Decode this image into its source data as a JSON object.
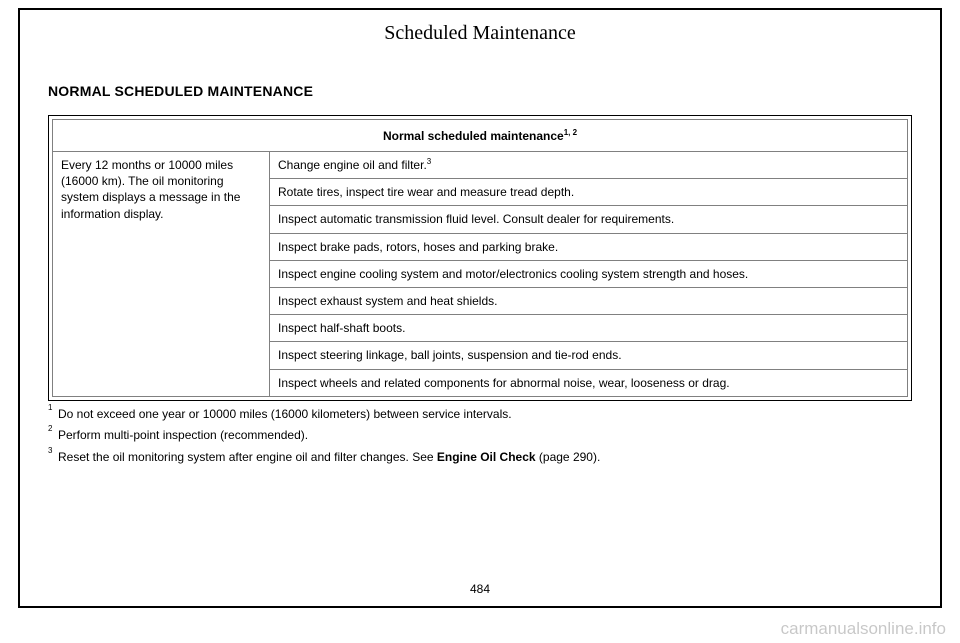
{
  "chapterTitle": "Scheduled Maintenance",
  "sectionTitle": "NORMAL SCHEDULED MAINTENANCE",
  "tableHeader": "Normal scheduled maintenance",
  "tableHeaderSup": "1, 2",
  "leftCell": "Every 12 months or 10000 miles (16000 km). The oil monitoring system displays a message in the information display.",
  "rows": [
    {
      "text": "Change engine oil and filter.",
      "sup": "3"
    },
    {
      "text": "Rotate tires, inspect tire wear and measure tread depth."
    },
    {
      "text": "Inspect automatic transmission fluid level. Consult dealer for requirements."
    },
    {
      "text": "Inspect brake pads, rotors, hoses and parking brake."
    },
    {
      "text": "Inspect engine cooling system and motor/electronics cooling system strength and hoses."
    },
    {
      "text": "Inspect exhaust system and heat shields."
    },
    {
      "text": "Inspect half-shaft boots."
    },
    {
      "text": "Inspect steering linkage, ball joints, suspension and tie-rod ends."
    },
    {
      "text": "Inspect wheels and related components for abnormal noise, wear, looseness or drag."
    }
  ],
  "footnotes": [
    {
      "num": "1",
      "text": "Do not exceed one year or 10000 miles (16000 kilometers) between service intervals."
    },
    {
      "num": "2",
      "text": "Perform multi-point inspection (recommended)."
    },
    {
      "num": "3",
      "prefix": "Reset the oil monitoring system after engine oil and filter changes.  See ",
      "bold": "Engine Oil Check",
      "suffix": " (page 290)."
    }
  ],
  "pageNumber": "484",
  "watermark": "carmanualsonline.info"
}
